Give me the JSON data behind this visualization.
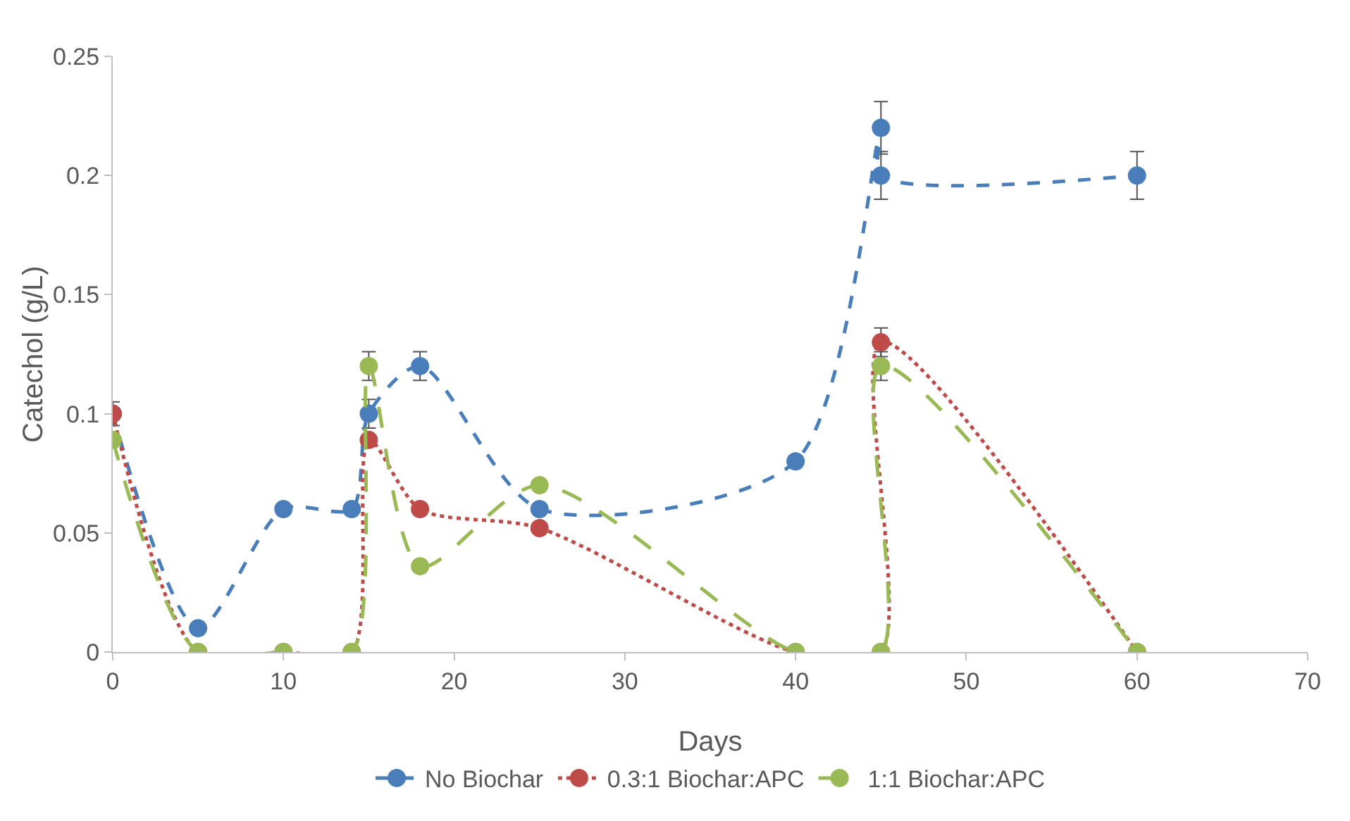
{
  "chart_data": {
    "type": "line",
    "xlabel": "Days",
    "ylabel": "Catechol (g/L)",
    "xlim": [
      0,
      70
    ],
    "xticks": [
      0,
      10,
      20,
      30,
      40,
      50,
      60,
      70
    ],
    "ylim": [
      0,
      0.25
    ],
    "yticks": [
      0,
      0.05,
      0.1,
      0.15,
      0.2,
      0.25
    ],
    "grid": false,
    "legend": "bottom",
    "marker": "circle",
    "x": [
      0,
      5,
      10,
      14,
      15,
      18,
      25,
      40,
      45,
      45,
      60
    ],
    "series": [
      {
        "name": "No Biochar",
        "color": "#4a7ebb",
        "line_style": "dashed",
        "values": [
          0.1,
          0.01,
          0.06,
          0.06,
          0.1,
          0.12,
          0.06,
          0.08,
          0.22,
          0.2,
          0.2
        ],
        "errors": [
          0.005,
          null,
          null,
          null,
          0.006,
          0.006,
          null,
          null,
          0.011,
          0.01,
          0.01
        ]
      },
      {
        "name": "0.3:1 Biochar:APC",
        "color": "#be4b48",
        "line_style": "dotted",
        "values": [
          0.1,
          0,
          0,
          0,
          0.089,
          0.06,
          0.052,
          0,
          0,
          0.13,
          0
        ],
        "errors": [
          null,
          null,
          null,
          null,
          null,
          null,
          null,
          null,
          null,
          0.006,
          null
        ]
      },
      {
        "name": "1:1 Biochar:APC",
        "color": "#98b954",
        "line_style": "longdash",
        "values": [
          0.089,
          0,
          0,
          0,
          0.12,
          0.036,
          0.07,
          0,
          0,
          0.12,
          0
        ],
        "errors": [
          null,
          null,
          null,
          null,
          0.006,
          null,
          null,
          null,
          null,
          0.006,
          null
        ]
      }
    ]
  }
}
